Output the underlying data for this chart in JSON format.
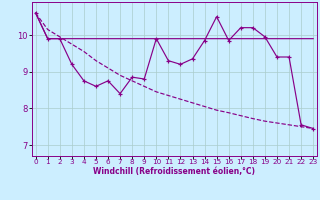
{
  "xlabel": "Windchill (Refroidissement éolien,°C)",
  "background_color": "#cceeff",
  "line_color": "#880088",
  "grid_color": "#aacccc",
  "x_ticks": [
    0,
    1,
    2,
    3,
    4,
    5,
    6,
    7,
    8,
    9,
    10,
    11,
    12,
    13,
    14,
    15,
    16,
    17,
    18,
    19,
    20,
    21,
    22,
    23
  ],
  "ylim": [
    6.7,
    10.9
  ],
  "xlim": [
    -0.3,
    23.3
  ],
  "yticks": [
    7,
    8,
    9,
    10
  ],
  "series1": [
    10.6,
    9.9,
    9.9,
    9.2,
    8.75,
    8.6,
    8.75,
    8.4,
    8.85,
    8.8,
    9.9,
    9.3,
    9.2,
    9.35,
    9.85,
    10.5,
    9.85,
    10.2,
    10.2,
    9.95,
    9.4,
    9.4,
    7.55,
    7.45
  ],
  "series2": [
    10.6,
    9.9,
    9.9,
    9.9,
    9.9,
    9.9,
    9.9,
    9.9,
    9.9,
    9.9,
    9.9,
    9.9,
    9.9,
    9.9,
    9.9,
    9.9,
    9.9,
    9.9,
    9.9,
    9.9,
    9.9,
    9.9,
    9.9,
    9.9
  ],
  "series3": [
    10.6,
    10.15,
    9.95,
    9.75,
    9.55,
    9.3,
    9.1,
    8.9,
    8.75,
    8.6,
    8.45,
    8.35,
    8.25,
    8.15,
    8.05,
    7.95,
    7.88,
    7.8,
    7.72,
    7.65,
    7.6,
    7.55,
    7.5,
    7.45
  ]
}
